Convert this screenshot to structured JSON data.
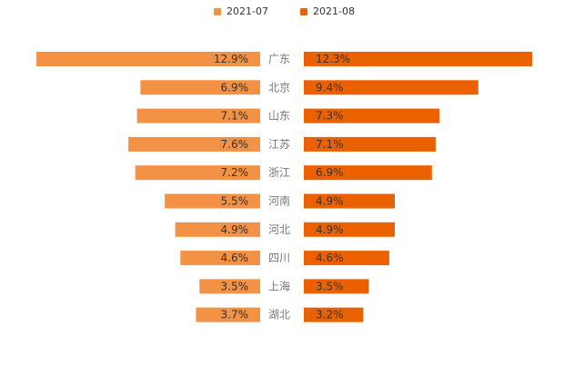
{
  "colors": {
    "series_left": "#f39145",
    "series_right": "#eb6100",
    "category_text": "#777777",
    "value_text": "#333333"
  },
  "chart_data": {
    "type": "bar",
    "orientation": "horizontal-butterfly",
    "categories": [
      "广东",
      "北京",
      "山东",
      "江苏",
      "浙江",
      "河南",
      "河北",
      "四川",
      "上海",
      "湖北"
    ],
    "series": [
      {
        "name": "2021-07",
        "value_labels": [
          "12.9%",
          "6.9%",
          "7.1%",
          "7.6%",
          "7.2%",
          "5.5%",
          "4.9%",
          "4.6%",
          "3.5%",
          "3.7%"
        ],
        "values": [
          12.9,
          6.9,
          7.1,
          7.6,
          7.2,
          5.5,
          4.9,
          4.6,
          3.5,
          3.7
        ]
      },
      {
        "name": "2021-08",
        "value_labels": [
          "12.3%",
          "9.4%",
          "7.3%",
          "7.1%",
          "6.9%",
          "4.9%",
          "4.9%",
          "4.6%",
          "3.5%",
          "3.2%"
        ],
        "values": [
          12.3,
          9.4,
          7.3,
          7.1,
          6.9,
          4.9,
          4.9,
          4.6,
          3.5,
          3.2
        ]
      }
    ],
    "legend": [
      "2021-07",
      "2021-08"
    ],
    "title": "",
    "grid": false
  }
}
